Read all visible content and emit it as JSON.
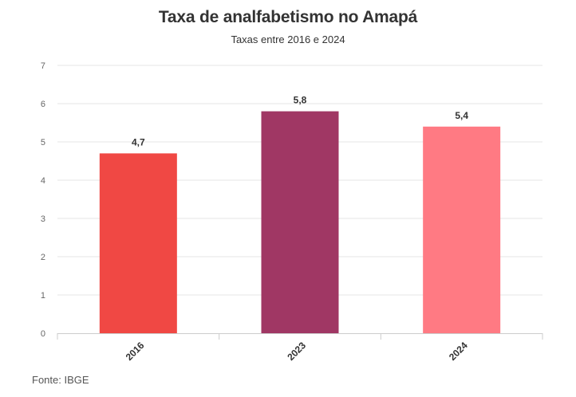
{
  "chart_data": {
    "type": "bar",
    "title": "Taxa de analfabetismo no Amapá",
    "subtitle": "Taxas entre 2016 e 2024",
    "categories": [
      "2016",
      "2023",
      "2024"
    ],
    "values": [
      4.7,
      5.8,
      5.4
    ],
    "value_labels": [
      "4,7",
      "5,8",
      "5,4"
    ],
    "colors": [
      "#f04844",
      "#a03764",
      "#ff7a83"
    ],
    "ylim": [
      0,
      7
    ],
    "yticks": [
      0,
      1,
      2,
      3,
      4,
      5,
      6,
      7
    ],
    "grid": true,
    "source": "Fonte: IBGE"
  }
}
